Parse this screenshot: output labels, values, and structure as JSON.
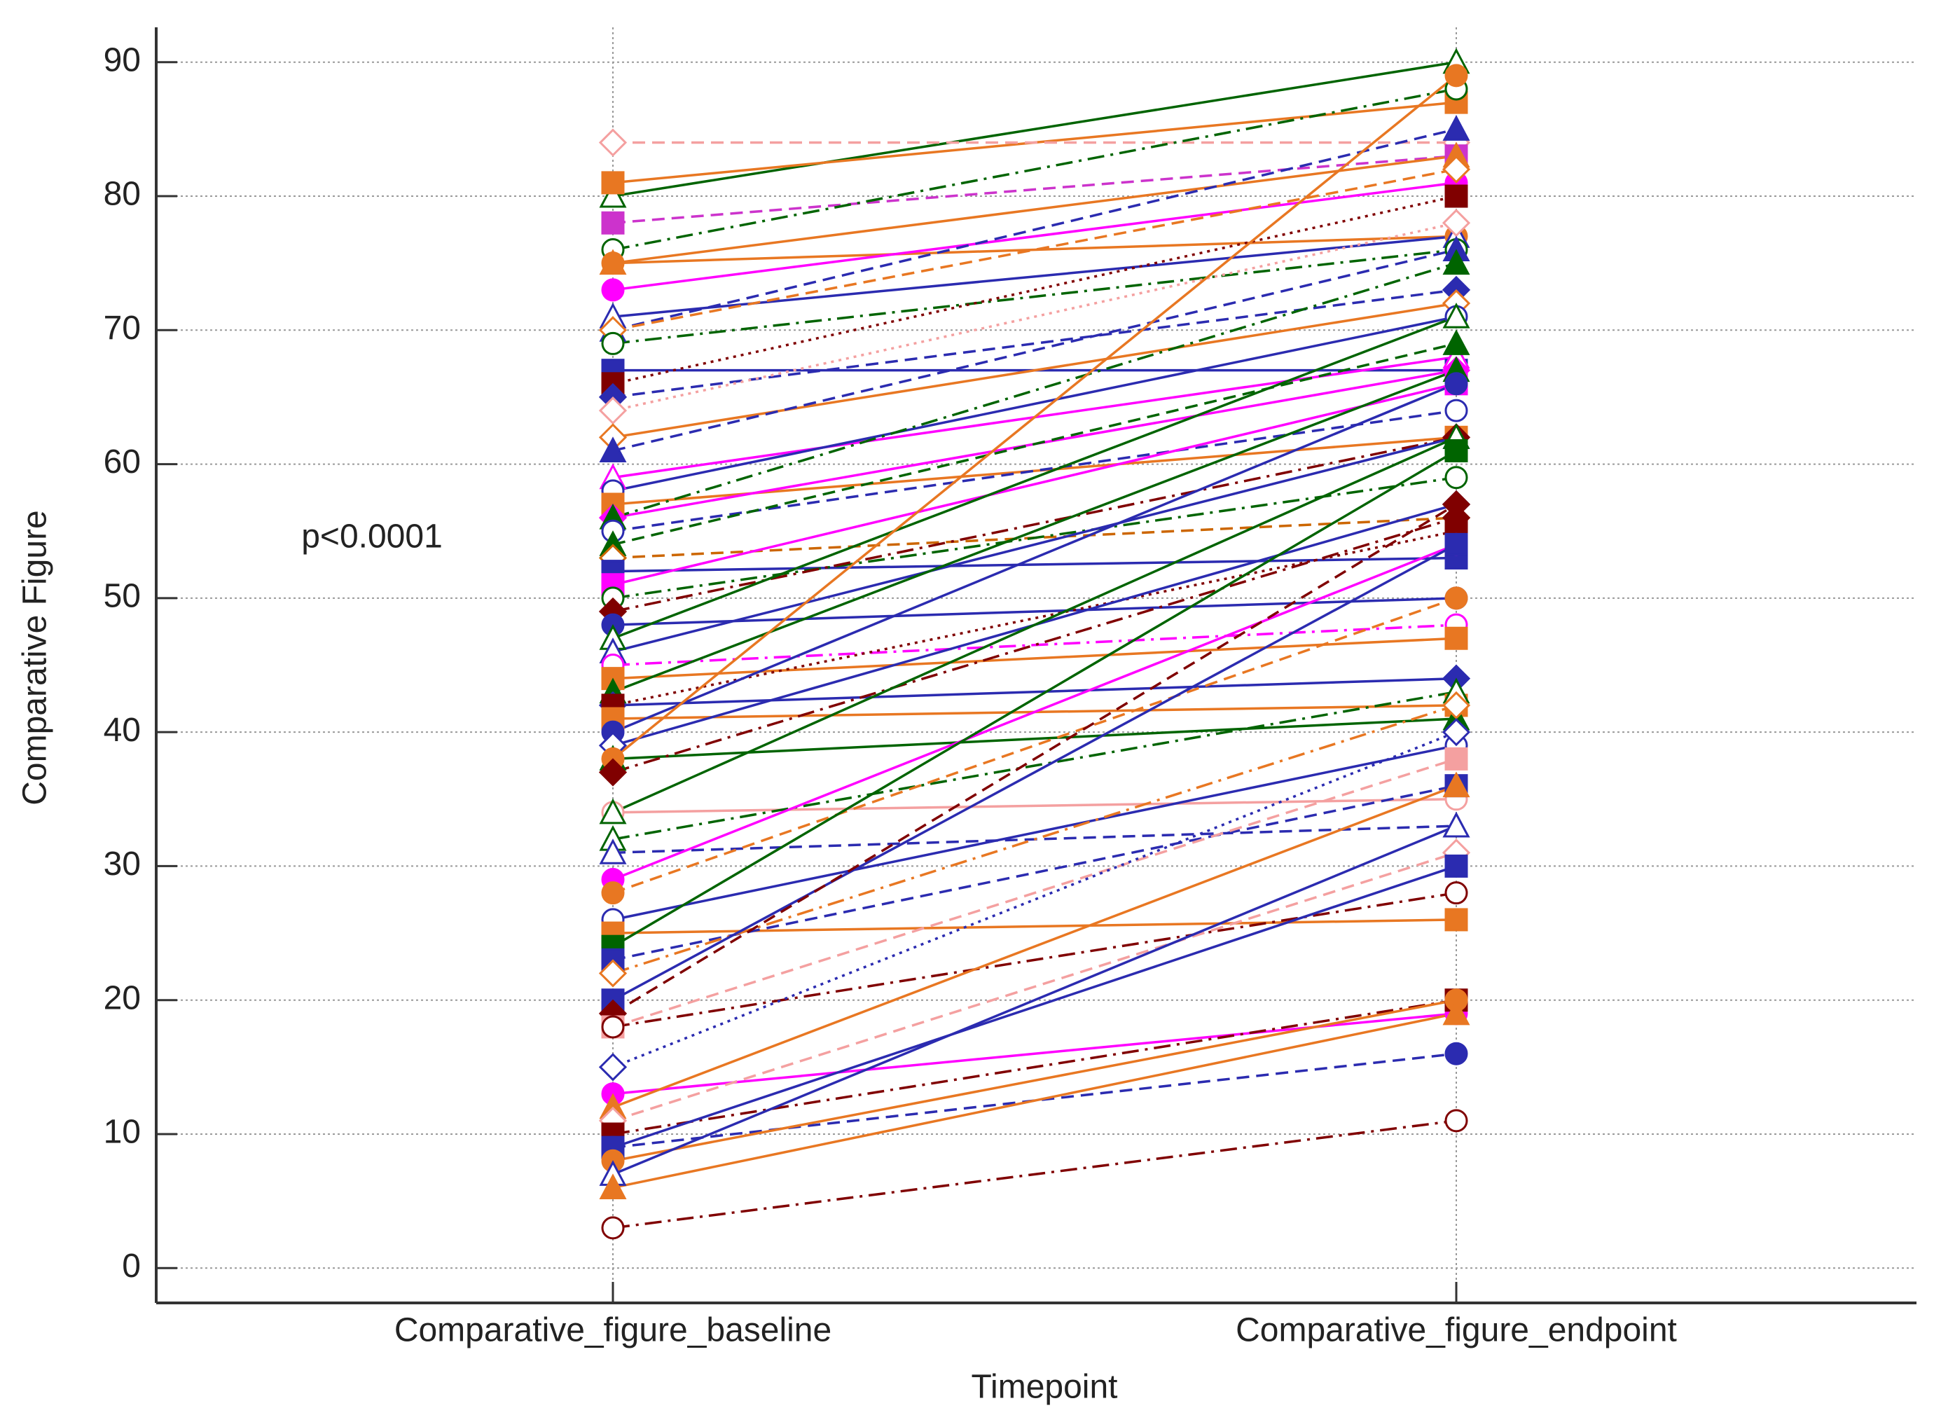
{
  "chart_data": {
    "type": "paired-line",
    "y_label": "Comparative Figure",
    "x_label": "Timepoint",
    "annotation": "p<0.0001",
    "categories": [
      "Comparative_figure_baseline",
      "Comparative_figure_endpoint"
    ],
    "ylim": [
      -2.6,
      92.6
    ],
    "yticks": [
      0,
      10,
      20,
      30,
      40,
      50,
      60,
      70,
      80,
      90
    ],
    "grid": true,
    "series": [
      {
        "color": "#006400",
        "dash": "solid",
        "marker": "triangle",
        "filled": false,
        "values": [
          80,
          90
        ]
      },
      {
        "color": "#e87722",
        "dash": "solid",
        "marker": "square",
        "filled": true,
        "values": [
          81,
          87
        ]
      },
      {
        "color": "#f4a0a0",
        "dash": "dashed",
        "marker": "diamond",
        "filled": false,
        "values": [
          84,
          84
        ]
      },
      {
        "color": "#cc33cc",
        "dash": "dashed",
        "marker": "square",
        "filled": true,
        "values": [
          78,
          83
        ]
      },
      {
        "color": "#006400",
        "dash": "dashdot",
        "marker": "circle",
        "filled": false,
        "values": [
          76,
          88
        ]
      },
      {
        "color": "#e87722",
        "dash": "solid",
        "marker": "triangle",
        "filled": true,
        "values": [
          75,
          83
        ]
      },
      {
        "color": "#e87722",
        "dash": "solid",
        "marker": "circle",
        "filled": true,
        "values": [
          75,
          77
        ]
      },
      {
        "color": "#ff00ff",
        "dash": "solid",
        "marker": "circle",
        "filled": true,
        "values": [
          73,
          81
        ]
      },
      {
        "color": "#2b2bb0",
        "dash": "solid",
        "marker": "triangle",
        "filled": false,
        "values": [
          71,
          77
        ]
      },
      {
        "color": "#2b2bb0",
        "dash": "dashed",
        "marker": "triangle",
        "filled": true,
        "values": [
          70,
          85
        ]
      },
      {
        "color": "#e87722",
        "dash": "dashed",
        "marker": "diamond",
        "filled": false,
        "values": [
          70,
          82
        ]
      },
      {
        "color": "#006400",
        "dash": "dashdot",
        "marker": "circle",
        "filled": false,
        "values": [
          69,
          76
        ]
      },
      {
        "color": "#2b2bb0",
        "dash": "solid",
        "marker": "square",
        "filled": true,
        "values": [
          67,
          67
        ]
      },
      {
        "color": "#800000",
        "dash": "dotted",
        "marker": "square",
        "filled": true,
        "values": [
          66,
          80
        ]
      },
      {
        "color": "#2b2bb0",
        "dash": "dashed",
        "marker": "diamond",
        "filled": true,
        "values": [
          65,
          73
        ]
      },
      {
        "color": "#f4a0a0",
        "dash": "dotted",
        "marker": "diamond",
        "filled": false,
        "values": [
          64,
          78
        ]
      },
      {
        "color": "#e87722",
        "dash": "solid",
        "marker": "diamond",
        "filled": false,
        "values": [
          62,
          72
        ]
      },
      {
        "color": "#2b2bb0",
        "dash": "dashed",
        "marker": "triangle",
        "filled": true,
        "values": [
          61,
          76
        ]
      },
      {
        "color": "#ff00ff",
        "dash": "solid",
        "marker": "triangle",
        "filled": false,
        "values": [
          59,
          68
        ]
      },
      {
        "color": "#2b2bb0",
        "dash": "solid",
        "marker": "circle",
        "filled": false,
        "values": [
          58,
          71
        ]
      },
      {
        "color": "#e87722",
        "dash": "solid",
        "marker": "square",
        "filled": true,
        "values": [
          57,
          62
        ]
      },
      {
        "color": "#ff00ff",
        "dash": "solid",
        "marker": "diamond",
        "filled": true,
        "values": [
          56,
          67
        ]
      },
      {
        "color": "#006400",
        "dash": "dashdot",
        "marker": "triangle",
        "filled": true,
        "values": [
          56,
          75
        ]
      },
      {
        "color": "#2b2bb0",
        "dash": "dashed",
        "marker": "circle",
        "filled": false,
        "values": [
          55,
          64
        ]
      },
      {
        "color": "#006400",
        "dash": "dashed",
        "marker": "triangle",
        "filled": true,
        "values": [
          54,
          69
        ]
      },
      {
        "color": "#cc6600",
        "dash": "dashed",
        "marker": "diamond",
        "filled": false,
        "values": [
          53,
          56
        ]
      },
      {
        "color": "#2b2bb0",
        "dash": "solid",
        "marker": "square",
        "filled": true,
        "values": [
          52,
          53
        ]
      },
      {
        "color": "#ff00ff",
        "dash": "solid",
        "marker": "square",
        "filled": true,
        "values": [
          51,
          66
        ]
      },
      {
        "color": "#006400",
        "dash": "dashdot",
        "marker": "circle",
        "filled": false,
        "values": [
          50,
          59
        ]
      },
      {
        "color": "#800000",
        "dash": "dashdot",
        "marker": "diamond",
        "filled": true,
        "values": [
          49,
          62
        ]
      },
      {
        "color": "#2b2bb0",
        "dash": "solid",
        "marker": "circle",
        "filled": true,
        "values": [
          48,
          50
        ]
      },
      {
        "color": "#006400",
        "dash": "solid",
        "marker": "triangle",
        "filled": false,
        "values": [
          47,
          71
        ]
      },
      {
        "color": "#2b2bb0",
        "dash": "solid",
        "marker": "triangle",
        "filled": false,
        "values": [
          46,
          62
        ]
      },
      {
        "color": "#ff00ff",
        "dash": "dashdot",
        "marker": "circle",
        "filled": false,
        "values": [
          45,
          48
        ]
      },
      {
        "color": "#e87722",
        "dash": "solid",
        "marker": "square",
        "filled": true,
        "values": [
          44,
          47
        ]
      },
      {
        "color": "#006400",
        "dash": "solid",
        "marker": "triangle",
        "filled": true,
        "values": [
          43,
          67
        ]
      },
      {
        "color": "#2b2bb0",
        "dash": "solid",
        "marker": "diamond",
        "filled": true,
        "values": [
          42,
          44
        ]
      },
      {
        "color": "#800000",
        "dash": "dotted",
        "marker": "square",
        "filled": true,
        "values": [
          42,
          55
        ]
      },
      {
        "color": "#e87722",
        "dash": "solid",
        "marker": "square",
        "filled": true,
        "values": [
          41,
          42
        ]
      },
      {
        "color": "#2b2bb0",
        "dash": "solid",
        "marker": "circle",
        "filled": true,
        "values": [
          40,
          66
        ]
      },
      {
        "color": "#2b2bb0",
        "dash": "solid",
        "marker": "diamond",
        "filled": false,
        "values": [
          39,
          57
        ]
      },
      {
        "color": "#006400",
        "dash": "solid",
        "marker": "triangle",
        "filled": true,
        "values": [
          38,
          41
        ]
      },
      {
        "color": "#e87722",
        "dash": "solid",
        "marker": "circle",
        "filled": true,
        "values": [
          38,
          89
        ]
      },
      {
        "color": "#800000",
        "dash": "dashdot",
        "marker": "diamond",
        "filled": true,
        "values": [
          37,
          56
        ]
      },
      {
        "color": "#f4a0a0",
        "dash": "solid",
        "marker": "circle",
        "filled": false,
        "values": [
          34,
          35
        ]
      },
      {
        "color": "#006400",
        "dash": "solid",
        "marker": "triangle",
        "filled": false,
        "values": [
          34,
          62
        ]
      },
      {
        "color": "#006400",
        "dash": "dashdot",
        "marker": "triangle",
        "filled": false,
        "values": [
          32,
          43
        ]
      },
      {
        "color": "#2b2bb0",
        "dash": "dashed",
        "marker": "triangle",
        "filled": false,
        "values": [
          31,
          33
        ]
      },
      {
        "color": "#ff00ff",
        "dash": "solid",
        "marker": "circle",
        "filled": true,
        "values": [
          29,
          54
        ]
      },
      {
        "color": "#e87722",
        "dash": "dashed",
        "marker": "circle",
        "filled": true,
        "values": [
          28,
          50
        ]
      },
      {
        "color": "#2b2bb0",
        "dash": "solid",
        "marker": "circle",
        "filled": false,
        "values": [
          26,
          39
        ]
      },
      {
        "color": "#e87722",
        "dash": "solid",
        "marker": "square",
        "filled": true,
        "values": [
          25,
          26
        ]
      },
      {
        "color": "#006400",
        "dash": "solid",
        "marker": "square",
        "filled": true,
        "values": [
          24,
          61
        ]
      },
      {
        "color": "#2b2bb0",
        "dash": "dashed",
        "marker": "square",
        "filled": true,
        "values": [
          23,
          36
        ]
      },
      {
        "color": "#e87722",
        "dash": "dashdot",
        "marker": "diamond",
        "filled": false,
        "values": [
          22,
          42
        ]
      },
      {
        "color": "#2b2bb0",
        "dash": "solid",
        "marker": "square",
        "filled": true,
        "values": [
          20,
          54
        ]
      },
      {
        "color": "#800000",
        "dash": "dashed",
        "marker": "diamond",
        "filled": true,
        "values": [
          19,
          57
        ]
      },
      {
        "color": "#f4a0a0",
        "dash": "dashed",
        "marker": "square",
        "filled": true,
        "values": [
          18,
          38
        ]
      },
      {
        "color": "#800000",
        "dash": "dashdot",
        "marker": "circle",
        "filled": false,
        "values": [
          18,
          28
        ]
      },
      {
        "color": "#2b2bb0",
        "dash": "dotted",
        "marker": "diamond",
        "filled": false,
        "values": [
          15,
          40
        ]
      },
      {
        "color": "#ff00ff",
        "dash": "solid",
        "marker": "circle",
        "filled": true,
        "values": [
          13,
          19
        ]
      },
      {
        "color": "#e87722",
        "dash": "solid",
        "marker": "triangle",
        "filled": true,
        "values": [
          12,
          36
        ]
      },
      {
        "color": "#f4a0a0",
        "dash": "dashed",
        "marker": "diamond",
        "filled": false,
        "values": [
          11,
          31
        ]
      },
      {
        "color": "#800000",
        "dash": "dashdot",
        "marker": "square",
        "filled": true,
        "values": [
          10,
          20
        ]
      },
      {
        "color": "#2b2bb0",
        "dash": "dashed",
        "marker": "circle",
        "filled": true,
        "values": [
          9,
          16
        ]
      },
      {
        "color": "#2b2bb0",
        "dash": "solid",
        "marker": "square",
        "filled": true,
        "values": [
          9,
          30
        ]
      },
      {
        "color": "#e87722",
        "dash": "solid",
        "marker": "circle",
        "filled": true,
        "values": [
          8,
          20
        ]
      },
      {
        "color": "#2b2bb0",
        "dash": "solid",
        "marker": "triangle",
        "filled": false,
        "values": [
          7,
          33
        ]
      },
      {
        "color": "#e87722",
        "dash": "solid",
        "marker": "triangle",
        "filled": true,
        "values": [
          6,
          19
        ]
      },
      {
        "color": "#800000",
        "dash": "dashdot",
        "marker": "circle",
        "filled": false,
        "values": [
          3,
          11
        ]
      }
    ]
  }
}
